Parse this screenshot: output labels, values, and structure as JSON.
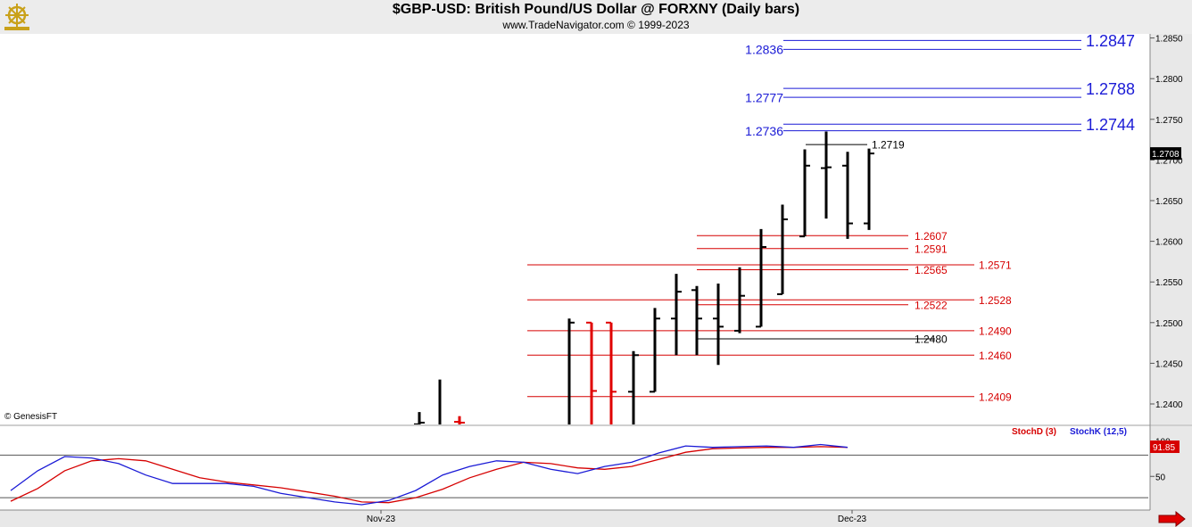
{
  "header": {
    "title": "$GBP-USD:  British Pound/US Dollar @ FORXNY  (Daily bars)",
    "subtitle": "www.TradeNavigator.com © 1999-2023",
    "logo_icon": "ship-wheel-logo-icon"
  },
  "footer": {
    "copyright": "© GenesisFT",
    "next_icon": "red-arrow-right-icon"
  },
  "colors": {
    "resistance": "#1a1ad6",
    "support": "#d60000",
    "bar_up": "#000000",
    "bar_down": "#e00000",
    "stochD": "#d60000",
    "stochK": "#1a1ad6",
    "panel_bg": "#e8e8e8"
  },
  "chart_data": [
    {
      "type": "ohlc",
      "ylim": [
        1.238,
        1.286
      ],
      "yticks": [
        1.24,
        1.245,
        1.25,
        1.255,
        1.26,
        1.265,
        1.27,
        1.275,
        1.28,
        1.285
      ],
      "ytick_labels": [
        "1.2400",
        "1.2450",
        "1.2500",
        "1.2550",
        "1.2600",
        "1.2650",
        "1.2700",
        "1.2750",
        "1.2800",
        "1.2850"
      ],
      "xticks": [
        "Nov-23",
        "Dec-23"
      ],
      "current_price": "1.2708",
      "bars": [
        {
          "open": 1.2375,
          "high": 1.239,
          "low": 1.2355,
          "close": 1.2377,
          "color": "black"
        },
        {
          "open": 1.236,
          "high": 1.243,
          "low": 1.234,
          "close": 1.237,
          "color": "black"
        },
        {
          "open": 1.2378,
          "high": 1.2385,
          "low": 1.234,
          "close": 1.2377,
          "color": "red"
        },
        {
          "open": 1.236,
          "high": 1.2505,
          "low": 1.234,
          "close": 1.25,
          "color": "black"
        },
        {
          "open": 1.25,
          "high": 1.25,
          "low": 1.236,
          "close": 1.2416,
          "color": "red"
        },
        {
          "open": 1.25,
          "high": 1.25,
          "low": 1.236,
          "close": 1.2415,
          "color": "red"
        },
        {
          "open": 1.2415,
          "high": 1.2465,
          "low": 1.236,
          "close": 1.246,
          "color": "black"
        },
        {
          "open": 1.2415,
          "high": 1.2518,
          "low": 1.2415,
          "close": 1.2505,
          "color": "black"
        },
        {
          "open": 1.2505,
          "high": 1.256,
          "low": 1.246,
          "close": 1.2538,
          "color": "black"
        },
        {
          "open": 1.254,
          "high": 1.2545,
          "low": 1.246,
          "close": 1.2505,
          "color": "black"
        },
        {
          "open": 1.2505,
          "high": 1.2548,
          "low": 1.2448,
          "close": 1.2495,
          "color": "black"
        },
        {
          "open": 1.249,
          "high": 1.2568,
          "low": 1.2487,
          "close": 1.2533,
          "color": "black"
        },
        {
          "open": 1.2495,
          "high": 1.2615,
          "low": 1.2495,
          "close": 1.2593,
          "color": "black"
        },
        {
          "open": 1.2535,
          "high": 1.2645,
          "low": 1.2535,
          "close": 1.2627,
          "color": "black"
        },
        {
          "open": 1.2606,
          "high": 1.2713,
          "low": 1.2606,
          "close": 1.2693,
          "color": "black"
        },
        {
          "open": 1.269,
          "high": 1.2735,
          "low": 1.2628,
          "close": 1.2691,
          "color": "black"
        },
        {
          "open": 1.2693,
          "high": 1.271,
          "low": 1.2603,
          "close": 1.2622,
          "color": "black"
        },
        {
          "open": 1.2622,
          "high": 1.2714,
          "low": 1.2614,
          "close": 1.2708,
          "color": "black"
        }
      ],
      "levels": [
        {
          "value": 1.2847,
          "label": "1.2847",
          "kind": "resistance"
        },
        {
          "value": 1.2836,
          "label": "1.2836",
          "kind": "resistance"
        },
        {
          "value": 1.2788,
          "label": "1.2788",
          "kind": "resistance"
        },
        {
          "value": 1.2777,
          "label": "1.2777",
          "kind": "resistance"
        },
        {
          "value": 1.2744,
          "label": "1.2744",
          "kind": "resistance"
        },
        {
          "value": 1.2736,
          "label": "1.2736",
          "kind": "resistance"
        },
        {
          "value": 1.2719,
          "label": "1.2719",
          "kind": "pivot"
        },
        {
          "value": 1.2607,
          "label": "1.2607",
          "kind": "support"
        },
        {
          "value": 1.2591,
          "label": "1.2591",
          "kind": "support"
        },
        {
          "value": 1.2571,
          "label": "1.2571",
          "kind": "support"
        },
        {
          "value": 1.2565,
          "label": "1.2565",
          "kind": "support"
        },
        {
          "value": 1.2528,
          "label": "1.2528",
          "kind": "support"
        },
        {
          "value": 1.2522,
          "label": "1.2522",
          "kind": "support"
        },
        {
          "value": 1.249,
          "label": "1.2490",
          "kind": "support"
        },
        {
          "value": 1.248,
          "label": "1.2480",
          "kind": "pivot"
        },
        {
          "value": 1.246,
          "label": "1.2460",
          "kind": "support"
        },
        {
          "value": 1.2409,
          "label": "1.2409",
          "kind": "support"
        }
      ]
    },
    {
      "type": "line",
      "ylim": [
        0,
        100
      ],
      "yticks": [
        50,
        100
      ],
      "ytick_labels": [
        "50",
        "100"
      ],
      "current_value": "91.85",
      "series": [
        {
          "name": "StochD (3)",
          "color": "#d60000",
          "values": [
            15,
            33,
            58,
            72,
            75,
            72,
            60,
            48,
            42,
            38,
            34,
            28,
            22,
            14,
            13,
            20,
            32,
            48,
            60,
            70,
            68,
            62,
            60,
            64,
            74,
            84,
            89,
            90,
            91,
            91,
            92,
            91
          ]
        },
        {
          "name": "StochK (12,5)",
          "color": "#1a1ad6",
          "values": [
            30,
            58,
            78,
            76,
            68,
            52,
            40,
            40,
            40,
            36,
            26,
            20,
            14,
            10,
            16,
            30,
            52,
            64,
            72,
            70,
            60,
            54,
            64,
            70,
            83,
            93,
            91,
            92,
            93,
            91,
            95,
            91
          ]
        }
      ]
    }
  ]
}
